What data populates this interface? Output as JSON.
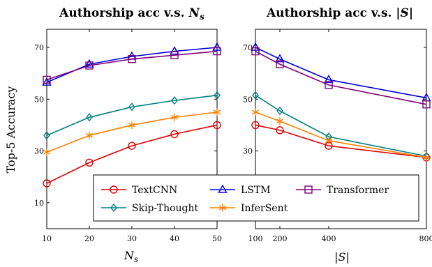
{
  "chart_data": [
    {
      "type": "line",
      "title_prefix": "Authorship acc v.s. ",
      "title_var": "N",
      "title_sub": "s",
      "xlabel_var": "N",
      "xlabel_sub": "s",
      "ylabel": "Top-5 Accuracy",
      "x": [
        10,
        20,
        30,
        40,
        50
      ],
      "xticks": [
        "10",
        "20",
        "30",
        "40",
        "50"
      ],
      "xlim": [
        10,
        50
      ],
      "ylim": [
        0,
        77
      ],
      "yticks": [
        "10",
        "30",
        "50",
        "70"
      ],
      "ytick_values": [
        10,
        30,
        50,
        70
      ],
      "series": [
        {
          "name": "TextCNN",
          "color": "#e00000",
          "marker": "circle",
          "values": [
            17.5,
            25.5,
            32,
            36.5,
            40
          ]
        },
        {
          "name": "LSTM",
          "color": "#0000dd",
          "marker": "triangle",
          "values": [
            56.5,
            63.5,
            66.5,
            68.5,
            70
          ]
        },
        {
          "name": "Transformer",
          "color": "#800080",
          "marker": "square",
          "values": [
            57.5,
            63,
            65.5,
            67,
            68.5
          ]
        },
        {
          "name": "Skip-Thought",
          "color": "#008080",
          "marker": "diamond",
          "values": [
            36,
            43,
            47,
            49.5,
            51.5
          ]
        },
        {
          "name": "InferSent",
          "color": "#ff8000",
          "marker": "star",
          "values": [
            29.5,
            36,
            40,
            43,
            45
          ]
        }
      ]
    },
    {
      "type": "line",
      "title_prefix": "Authorship acc v.s. |",
      "title_var": "S",
      "title_suffix": "|",
      "xlabel": "|S|",
      "x": [
        100,
        200,
        400,
        800
      ],
      "xticks": [
        "100",
        "200",
        "400",
        "800"
      ],
      "xlim": [
        100,
        800
      ],
      "ylim": [
        0,
        77
      ],
      "yticks": [
        "30",
        "50",
        "70"
      ],
      "ytick_values": [
        30,
        50,
        70
      ],
      "series": [
        {
          "name": "TextCNN",
          "color": "#e00000",
          "marker": "circle",
          "values": [
            40,
            38,
            32,
            27.5
          ]
        },
        {
          "name": "LSTM",
          "color": "#0000dd",
          "marker": "triangle",
          "values": [
            70,
            65.5,
            57.5,
            50.5
          ]
        },
        {
          "name": "Transformer",
          "color": "#800080",
          "marker": "square",
          "values": [
            68.5,
            63.5,
            55.5,
            48
          ]
        },
        {
          "name": "Skip-Thought",
          "color": "#008080",
          "marker": "diamond",
          "values": [
            51.5,
            45.5,
            35.5,
            28
          ]
        },
        {
          "name": "InferSent",
          "color": "#ff8000",
          "marker": "star",
          "values": [
            45,
            41.5,
            34,
            27.5
          ]
        }
      ]
    }
  ],
  "legend": {
    "placement": "bottom-center",
    "rows": [
      [
        "TextCNN",
        "LSTM",
        "Transformer"
      ],
      [
        "Skip-Thought",
        "InferSent"
      ]
    ]
  }
}
